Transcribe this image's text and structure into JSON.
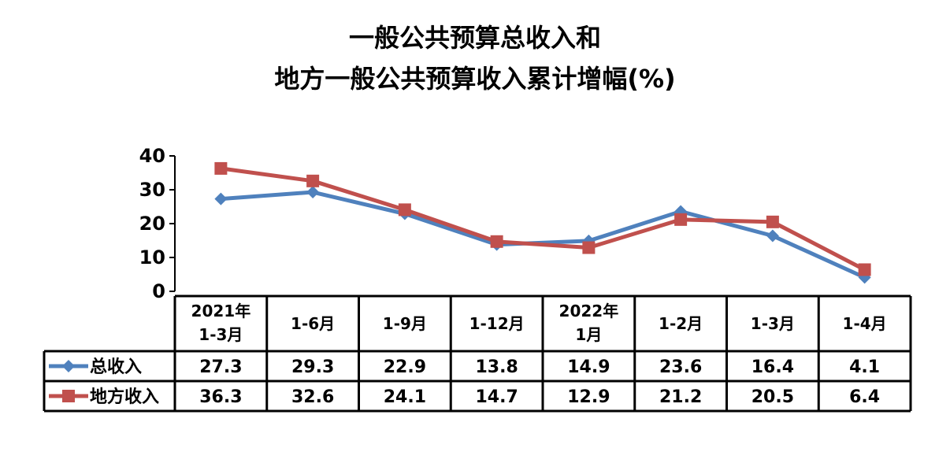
{
  "title_line1": "一般公共预算总收入和",
  "title_line2": "地方一般公共预算收入累计增幅(%)",
  "chart_data": {
    "type": "line",
    "title": "一般公共预算总收入和地方一般公共预算收入累计增幅(%)",
    "categories": [
      [
        "2021年",
        "1-3月"
      ],
      [
        "1-6月"
      ],
      [
        "1-9月"
      ],
      [
        "1-12月"
      ],
      [
        "2022年",
        "1月"
      ],
      [
        "1-2月"
      ],
      [
        "1-3月"
      ],
      [
        "1-4月"
      ]
    ],
    "yticks": [
      "0",
      "10",
      "20",
      "30",
      "40"
    ],
    "ylim": [
      0,
      40
    ],
    "grid": false,
    "legend_position": "data-table",
    "series": [
      {
        "name": "总收入",
        "color": "#4F81BD",
        "marker": "diamond",
        "values": [
          27.3,
          29.3,
          22.9,
          13.8,
          14.9,
          23.6,
          16.4,
          4.1
        ],
        "labels": [
          "27.3",
          "29.3",
          "22.9",
          "13.8",
          "14.9",
          "23.6",
          "16.4",
          "4.1"
        ]
      },
      {
        "name": "地方收入",
        "color": "#C0504D",
        "marker": "square",
        "values": [
          36.3,
          32.6,
          24.1,
          14.7,
          12.9,
          21.2,
          20.5,
          6.4
        ],
        "labels": [
          "36.3",
          "32.6",
          "24.1",
          "14.7",
          "12.9",
          "21.2",
          "20.5",
          "6.4"
        ]
      }
    ]
  }
}
